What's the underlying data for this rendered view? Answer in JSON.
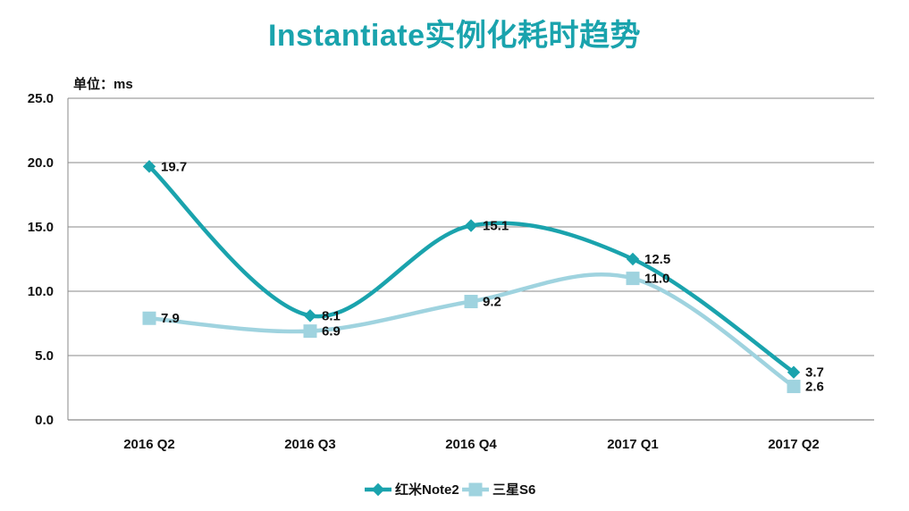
{
  "chart_data": {
    "type": "line",
    "title": "Instantiate实例化耗时趋势",
    "unit_label": "单位：ms",
    "categories": [
      "2016 Q2",
      "2016 Q3",
      "2016 Q4",
      "2017 Q1",
      "2017 Q2"
    ],
    "ylim": [
      0,
      25
    ],
    "yticks": [
      "0.0",
      "5.0",
      "10.0",
      "15.0",
      "20.0",
      "25.0"
    ],
    "grid": true,
    "legend_position": "bottom",
    "series": [
      {
        "name": "红米Note2",
        "values": [
          19.7,
          8.1,
          15.1,
          12.5,
          3.7
        ],
        "labels": [
          "19.7",
          "8.1",
          "15.1",
          "12.5",
          "3.7"
        ],
        "color": "#1aa3ad",
        "marker": "diamond"
      },
      {
        "name": "三星S6",
        "values": [
          7.9,
          6.9,
          9.2,
          11.0,
          2.6
        ],
        "labels": [
          "7.9",
          "6.9",
          "9.2",
          "11.0",
          "2.6"
        ],
        "color": "#9fd3df",
        "marker": "square"
      }
    ]
  }
}
